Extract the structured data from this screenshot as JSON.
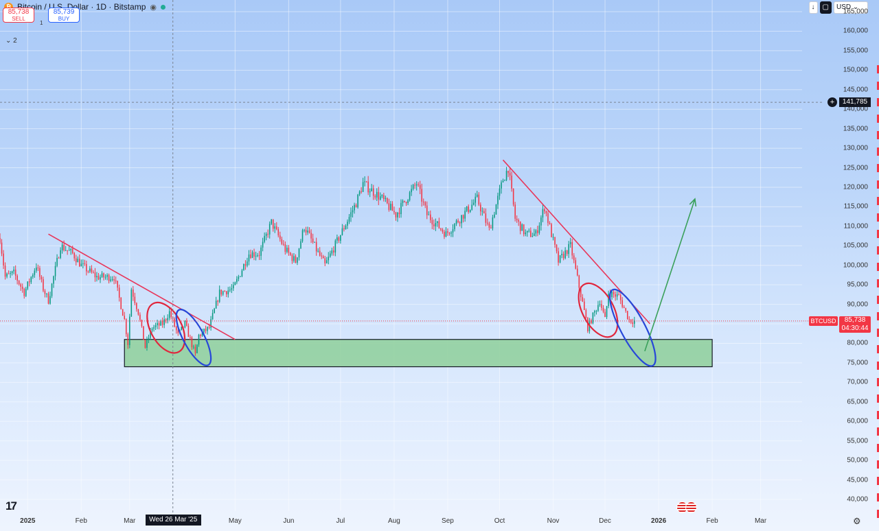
{
  "header": {
    "title": "Bitcoin / U.S. Dollar · 1D · Bitstamp",
    "logo_glyph": "₿",
    "sell_price": "85,738",
    "sell_label": "SELL",
    "buy_price": "85,739",
    "buy_label": "BUY",
    "spread": "1",
    "indicators_toggle": "⌄ 2"
  },
  "toolbar": {
    "download_icon": "↓",
    "screenshot_icon": "▢",
    "currency": "USD ⌄"
  },
  "crosshair": {
    "date_label": "Wed 26 Mar '25",
    "price_label": "141,785",
    "plus_icon": "+"
  },
  "price_tag": {
    "symbol": "BTCUSD",
    "price": "85,738",
    "countdown": "04:30:44",
    "color": "#f23645"
  },
  "branding": {
    "logo": "17"
  },
  "chart_data": {
    "type": "candlestick",
    "symbol": "BTCUSD",
    "interval": "1D",
    "exchange": "Bitstamp",
    "ylim": [
      37000,
      168000
    ],
    "y_ticks": [
      40000,
      45000,
      50000,
      55000,
      60000,
      65000,
      70000,
      75000,
      80000,
      85000,
      90000,
      95000,
      100000,
      105000,
      110000,
      115000,
      120000,
      125000,
      130000,
      135000,
      140000,
      145000,
      150000,
      155000,
      160000,
      165000
    ],
    "y_tick_labels": [
      "40,000",
      "45,000",
      "50,000",
      "55,000",
      "60,000",
      "65,000",
      "70,000",
      "75,000",
      "80,000",
      "85,000",
      "90,000",
      "95,000",
      "100,000",
      "105,000",
      "110,000",
      "115,000",
      "120,000",
      "125,000",
      "130,000",
      "135,000",
      "140,000",
      "145,000",
      "150,000",
      "155,000",
      "160,000",
      "165,000"
    ],
    "x_range": [
      "2024-12-16",
      "2026-03-25"
    ],
    "x_ticks": [
      {
        "date": "2025-01-01",
        "label": "2025",
        "bold": true
      },
      {
        "date": "2025-02-01",
        "label": "Feb"
      },
      {
        "date": "2025-03-01",
        "label": "Mar"
      },
      {
        "date": "2025-05-01",
        "label": "May"
      },
      {
        "date": "2025-06-01",
        "label": "Jun"
      },
      {
        "date": "2025-07-01",
        "label": "Jul"
      },
      {
        "date": "2025-08-01",
        "label": "Aug"
      },
      {
        "date": "2025-09-01",
        "label": "Sep"
      },
      {
        "date": "2025-10-01",
        "label": "Oct"
      },
      {
        "date": "2025-11-01",
        "label": "Nov"
      },
      {
        "date": "2025-12-01",
        "label": "Dec"
      },
      {
        "date": "2026-01-01",
        "label": "2026",
        "bold": true
      },
      {
        "date": "2026-02-01",
        "label": "Feb"
      },
      {
        "date": "2026-03-01",
        "label": "Mar"
      }
    ],
    "grid": true,
    "colors": {
      "up": "#089981",
      "down": "#f23645"
    },
    "price_path": [
      [
        "2024-12-16",
        107000
      ],
      [
        "2024-12-19",
        97000
      ],
      [
        "2024-12-24",
        98000
      ],
      [
        "2024-12-30",
        93000
      ],
      [
        "2025-01-06",
        100000
      ],
      [
        "2025-01-10",
        94000
      ],
      [
        "2025-01-13",
        91000
      ],
      [
        "2025-01-20",
        105000
      ],
      [
        "2025-01-27",
        103000
      ],
      [
        "2025-02-01",
        100000
      ],
      [
        "2025-02-10",
        97000
      ],
      [
        "2025-02-20",
        97000
      ],
      [
        "2025-02-26",
        86000
      ],
      [
        "2025-02-28",
        80000
      ],
      [
        "2025-03-02",
        94000
      ],
      [
        "2025-03-06",
        88000
      ],
      [
        "2025-03-10",
        79000
      ],
      [
        "2025-03-14",
        84000
      ],
      [
        "2025-03-20",
        85000
      ],
      [
        "2025-03-24",
        88000
      ],
      [
        "2025-03-29",
        82000
      ],
      [
        "2025-04-02",
        85000
      ],
      [
        "2025-04-08",
        77000
      ],
      [
        "2025-04-10",
        82000
      ],
      [
        "2025-04-16",
        84000
      ],
      [
        "2025-04-22",
        93000
      ],
      [
        "2025-04-30",
        94000
      ],
      [
        "2025-05-09",
        103000
      ],
      [
        "2025-05-15",
        103000
      ],
      [
        "2025-05-22",
        111000
      ],
      [
        "2025-05-30",
        104000
      ],
      [
        "2025-06-05",
        101000
      ],
      [
        "2025-06-10",
        110000
      ],
      [
        "2025-06-17",
        104000
      ],
      [
        "2025-06-22",
        100000
      ],
      [
        "2025-06-30",
        107000
      ],
      [
        "2025-07-10",
        116000
      ],
      [
        "2025-07-14",
        121000
      ],
      [
        "2025-07-25",
        117000
      ],
      [
        "2025-08-02",
        113000
      ],
      [
        "2025-08-14",
        121000
      ],
      [
        "2025-08-20",
        113000
      ],
      [
        "2025-08-31",
        108000
      ],
      [
        "2025-09-10",
        113000
      ],
      [
        "2025-09-18",
        117000
      ],
      [
        "2025-09-25",
        109000
      ],
      [
        "2025-10-03",
        122000
      ],
      [
        "2025-10-06",
        125000
      ],
      [
        "2025-10-10",
        112000
      ],
      [
        "2025-10-16",
        108000
      ],
      [
        "2025-10-22",
        108000
      ],
      [
        "2025-10-27",
        115000
      ],
      [
        "2025-11-04",
        101000
      ],
      [
        "2025-11-11",
        105000
      ],
      [
        "2025-11-21",
        84000
      ],
      [
        "2025-11-28",
        91000
      ],
      [
        "2025-12-01",
        86000
      ],
      [
        "2025-12-03",
        93000
      ],
      [
        "2025-12-09",
        92000
      ],
      [
        "2025-12-15",
        86000
      ],
      [
        "2025-12-18",
        85738
      ]
    ],
    "annotations": {
      "trendlines": [
        {
          "color": "#e8365a",
          "from": [
            "2025-01-13",
            108000
          ],
          "to": [
            "2025-05-01",
            81000
          ]
        },
        {
          "color": "#e8365a",
          "from": [
            "2025-10-03",
            127000
          ],
          "to": [
            "2025-12-27",
            85000
          ]
        }
      ],
      "support_zone": {
        "from": "2025-02-26",
        "to": "2026-02-01",
        "low": 74000,
        "high": 81000,
        "color": "#8ecf9a"
      },
      "ellipses": [
        {
          "color": "#e0263d",
          "center": [
            "2025-03-22",
            84000
          ],
          "rx_days": 9,
          "ry_price": 7000
        },
        {
          "color": "#2747d8",
          "center": [
            "2025-04-07",
            81500
          ],
          "rx_days": 6,
          "ry_price": 8000
        },
        {
          "color": "#e0263d",
          "center": [
            "2025-11-27",
            88500
          ],
          "rx_days": 9,
          "ry_price": 7500
        },
        {
          "color": "#2747d8",
          "center": [
            "2025-12-17",
            84000
          ],
          "rx_days": 7,
          "ry_price": 11000
        }
      ],
      "projection_arrow": {
        "color": "#3aa05a",
        "from": [
          "2025-12-24",
          78000
        ],
        "to": [
          "2026-01-22",
          117000
        ]
      },
      "crosshair": {
        "date": "2025-03-26",
        "price": 141785
      },
      "last_price": 85738
    }
  }
}
